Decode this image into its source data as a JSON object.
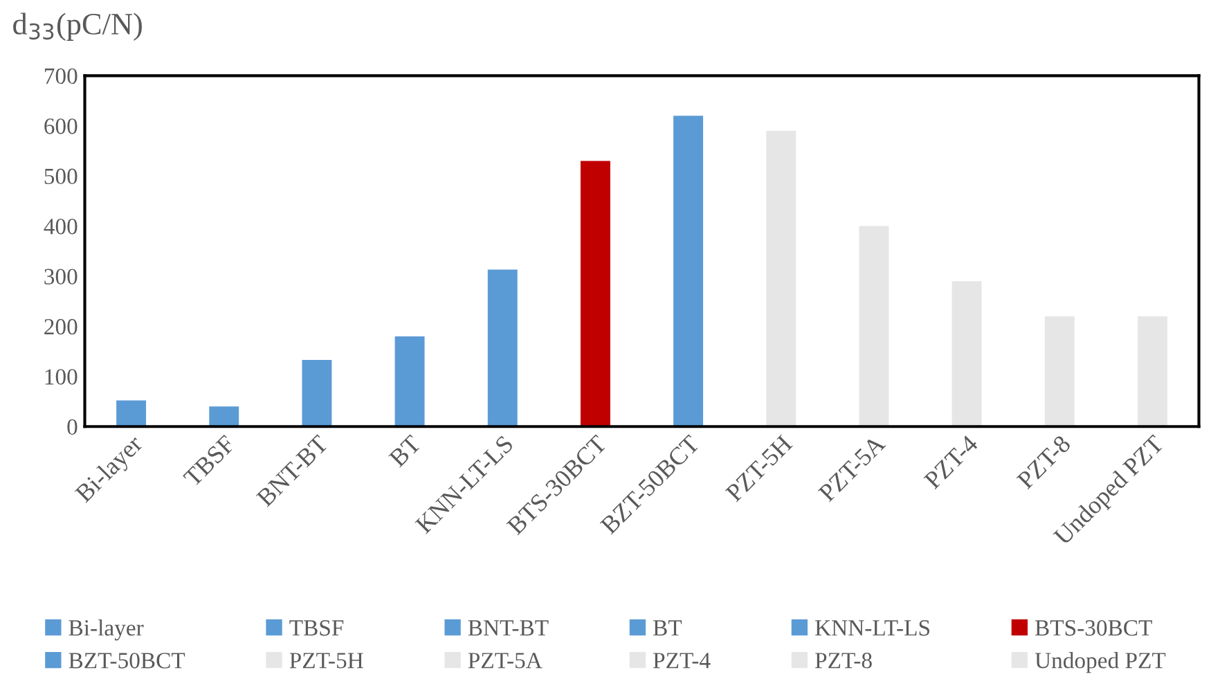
{
  "chart_data": {
    "type": "bar",
    "ylabel": "d$_{33}$(pC/N)",
    "stacked": true,
    "categories": [
      "Bi-layer",
      "TBSF",
      "BNT-BT",
      "BT",
      "KNN-LT-LS",
      "BTS-30BCT",
      "BZT-50BCT",
      "PZT-5H",
      "PZT-5A",
      "PZT-4",
      "PZT-8",
      "Undoped PZT"
    ],
    "series": [
      {
        "name": "Bi-layer",
        "color": "#5b9bd5",
        "values": [
          52,
          null,
          null,
          null,
          null,
          null,
          null,
          null,
          null,
          null,
          null,
          null
        ]
      },
      {
        "name": "TBSF",
        "color": "#5b9bd5",
        "values": [
          null,
          40,
          null,
          null,
          null,
          null,
          null,
          null,
          null,
          null,
          null,
          null
        ]
      },
      {
        "name": "BNT-BT",
        "color": "#5b9bd5",
        "values": [
          null,
          null,
          133,
          null,
          null,
          null,
          null,
          null,
          null,
          null,
          null,
          null
        ]
      },
      {
        "name": "BT",
        "color": "#5b9bd5",
        "values": [
          null,
          null,
          null,
          180,
          null,
          null,
          null,
          null,
          null,
          null,
          null,
          null
        ]
      },
      {
        "name": "KNN-LT-LS",
        "color": "#5b9bd5",
        "values": [
          null,
          null,
          null,
          null,
          313,
          null,
          null,
          null,
          null,
          null,
          null,
          null
        ]
      },
      {
        "name": "BTS-30BCT",
        "color": "#c00000",
        "values": [
          null,
          null,
          null,
          null,
          null,
          530,
          null,
          null,
          null,
          null,
          null,
          null
        ]
      },
      {
        "name": "BZT-50BCT",
        "color": "#5b9bd5",
        "values": [
          null,
          null,
          null,
          null,
          null,
          null,
          620,
          null,
          null,
          null,
          null,
          null
        ]
      },
      {
        "name": "PZT-5H",
        "color": "#e7e6e6",
        "values": [
          null,
          null,
          null,
          null,
          null,
          null,
          null,
          590,
          null,
          null,
          null,
          null
        ]
      },
      {
        "name": "PZT-5A",
        "color": "#e7e6e6",
        "values": [
          null,
          null,
          null,
          null,
          null,
          null,
          null,
          null,
          400,
          null,
          null,
          null
        ]
      },
      {
        "name": "PZT-4",
        "color": "#e7e6e6",
        "values": [
          null,
          null,
          null,
          null,
          null,
          null,
          null,
          null,
          null,
          290,
          null,
          null
        ]
      },
      {
        "name": "PZT-8",
        "color": "#e7e6e6",
        "values": [
          null,
          null,
          null,
          null,
          null,
          null,
          null,
          null,
          null,
          null,
          220,
          null
        ]
      },
      {
        "name": "Undoped PZT",
        "color": "#e7e6e6",
        "values": [
          null,
          null,
          null,
          null,
          null,
          null,
          null,
          null,
          null,
          null,
          null,
          220
        ]
      }
    ],
    "ylim": [
      0,
      700
    ],
    "yticks": [
      0,
      100,
      200,
      300,
      400,
      500,
      600,
      700
    ],
    "grid": false,
    "legend": "bottom"
  }
}
